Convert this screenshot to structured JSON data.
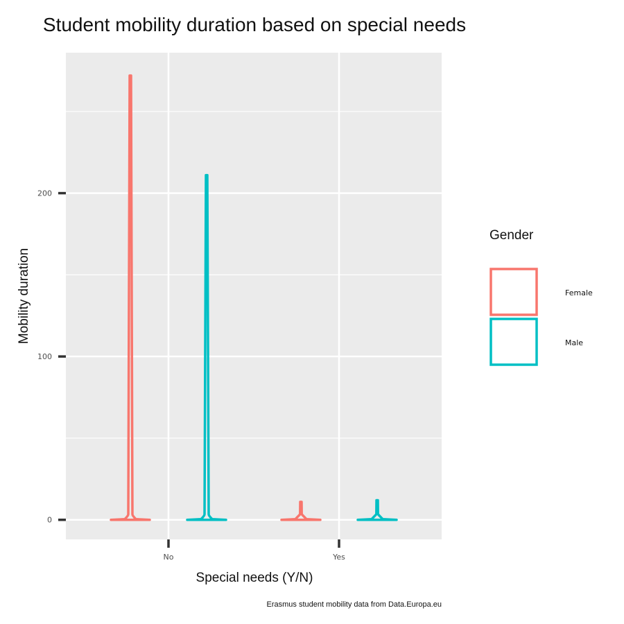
{
  "chart_data": {
    "type": "violin",
    "title": "Student mobility duration based on special needs",
    "xlabel": "Special needs (Y/N)",
    "ylabel": "Mobility duration",
    "categories": [
      "No",
      "Yes"
    ],
    "ylim": [
      -12,
      286
    ],
    "yticks": [
      0,
      100,
      200
    ],
    "grid": true,
    "legend": {
      "title": "Gender",
      "placement": "right",
      "entries": [
        {
          "name": "Female",
          "color": "#F8766D"
        },
        {
          "name": "Male",
          "color": "#00BFC4"
        }
      ]
    },
    "series": [
      {
        "name": "Female",
        "color": "#F8766D",
        "category": "No",
        "min": 0,
        "max": 272
      },
      {
        "name": "Male",
        "color": "#00BFC4",
        "category": "No",
        "min": 0,
        "max": 211
      },
      {
        "name": "Female",
        "color": "#F8766D",
        "category": "Yes",
        "min": 0,
        "max": 11
      },
      {
        "name": "Male",
        "color": "#00BFC4",
        "category": "Yes",
        "min": 0,
        "max": 12
      }
    ]
  },
  "caption": "Erasmus student mobility data from Data.Europa.eu"
}
